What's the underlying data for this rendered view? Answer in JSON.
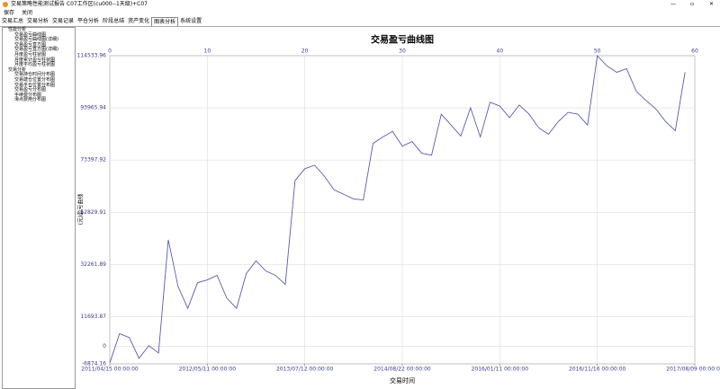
{
  "window": {
    "title": "交易策略性能测试报告 C07工作区(cu000--1天级)+C07"
  },
  "toolbar": [
    "保存",
    "关闭"
  ],
  "tabs": [
    "交易汇总",
    "交易分析",
    "交易记录",
    "平仓分析",
    "阶段总结",
    "资产变化",
    "图表分析",
    "系统设置"
  ],
  "tree": [
    {
      "label": "性能分析",
      "children": [
        "交易盈亏曲线图",
        "交易盈亏曲线图(详细)",
        "交易盈亏直方图",
        "交易盈亏直方图(详细)",
        "月度盈亏柱状图",
        "月度累计盈亏柱状图",
        "月度平均盈亏柱状图"
      ]
    },
    {
      "label": "交易分析",
      "children": [
        "交易持仓时间分布图",
        "交易建仓位置分布图",
        "交易平仓位置分布图",
        "交易盈亏分布图",
        "手续费分布图",
        "滑点费用分布图"
      ]
    }
  ],
  "chart_data": {
    "type": "line",
    "title": "交易盈亏曲线图",
    "ylabel": "(元)盈亏曲线",
    "xlabel": "交易时间",
    "x": [
      0,
      1,
      2,
      3,
      4,
      5,
      6,
      7,
      8,
      9,
      10,
      11,
      12,
      13,
      14,
      15,
      16,
      17,
      18,
      19,
      20,
      21,
      22,
      23,
      24,
      25,
      26,
      27,
      28,
      29,
      30,
      31,
      32,
      33,
      34,
      35,
      36,
      37,
      38,
      39,
      40,
      41,
      42,
      43,
      44,
      45,
      46,
      47,
      48,
      49,
      50,
      51,
      52,
      53,
      54,
      55,
      56,
      57,
      58,
      59
    ],
    "series": [
      {
        "name": "盈亏",
        "color": "#5a5ab4",
        "values": [
          -6500,
          5000,
          3500,
          -4700,
          300,
          -2600,
          42000,
          23600,
          15000,
          25100,
          26200,
          28000,
          19000,
          15000,
          28700,
          33700,
          29700,
          28000,
          24400,
          65300,
          70000,
          71400,
          67100,
          61700,
          59900,
          58100,
          57700,
          80000,
          82500,
          84700,
          78900,
          80700,
          76100,
          75300,
          91500,
          87200,
          82900,
          94000,
          82500,
          96200,
          94700,
          90100,
          95100,
          91500,
          86100,
          83600,
          88600,
          92200,
          91500,
          87200,
          114500,
          110500,
          108000,
          109400,
          100500,
          96900,
          93600,
          88600,
          85000,
          108000
        ]
      }
    ],
    "xlim": [
      0,
      60
    ],
    "xticks": [
      0,
      10,
      20,
      30,
      40,
      50,
      60
    ],
    "date_ticks": [
      {
        "value": 0,
        "label": "2011/04/15 00:00:00"
      },
      {
        "value": 10,
        "label": "2012/05/11 00:00:00"
      },
      {
        "value": 20,
        "label": "2013/07/12 00:00:00"
      },
      {
        "value": 30,
        "label": "2014/08/22 00:00:00"
      },
      {
        "value": 40,
        "label": "2016/01/11 00:00:00"
      },
      {
        "value": 50,
        "label": "2016/11/16 00:00:00"
      },
      {
        "value": 60,
        "label": "2017/08/09 00:00:00"
      }
    ],
    "ylim": [
      -6874.16,
      114533.96
    ],
    "yticks": [
      -6874.16,
      0,
      11693.87,
      32261.89,
      52829.91,
      73397.92,
      93965.94,
      114533.96
    ],
    "grid": true
  }
}
